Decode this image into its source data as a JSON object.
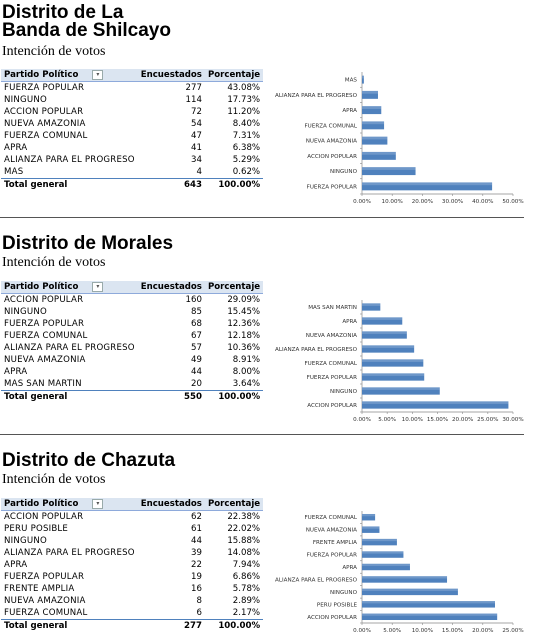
{
  "sections": [
    {
      "title_line1": "Distrito de La",
      "title_line2": "Banda de Shilcayo",
      "subtitle": "Intención de votos",
      "header": {
        "party": "Partido Político",
        "respondents": "Encuestados",
        "percent": "Porcentaje"
      },
      "rows": [
        {
          "party": "FUERZA POPULAR",
          "respondents": "277",
          "percent": "43.08%"
        },
        {
          "party": "NINGUNO",
          "respondents": "114",
          "percent": "17.73%"
        },
        {
          "party": "ACCION POPULAR",
          "respondents": "72",
          "percent": "11.20%"
        },
        {
          "party": "NUEVA AMAZONIA",
          "respondents": "54",
          "percent": "8.40%"
        },
        {
          "party": "FUERZA COMUNAL",
          "respondents": "47",
          "percent": "7.31%"
        },
        {
          "party": "APRA",
          "respondents": "41",
          "percent": "6.38%"
        },
        {
          "party": "ALIANZA PARA EL PROGRESO",
          "respondents": "34",
          "percent": "5.29%"
        },
        {
          "party": "MAS",
          "respondents": "4",
          "percent": "0.62%"
        }
      ],
      "total": {
        "label": "Total general",
        "respondents": "643",
        "percent": "100.00%"
      }
    },
    {
      "title_line1": "Distrito de Morales",
      "subtitle": "Intención de votos",
      "header": {
        "party": "Partido Político",
        "respondents": "Encuestados",
        "percent": "Porcentaje"
      },
      "rows": [
        {
          "party": "ACCION POPULAR",
          "respondents": "160",
          "percent": "29.09%"
        },
        {
          "party": "NINGUNO",
          "respondents": "85",
          "percent": "15.45%"
        },
        {
          "party": "FUERZA POPULAR",
          "respondents": "68",
          "percent": "12.36%"
        },
        {
          "party": "FUERZA COMUNAL",
          "respondents": "67",
          "percent": "12.18%"
        },
        {
          "party": "ALIANZA PARA EL PROGRESO",
          "respondents": "57",
          "percent": "10.36%"
        },
        {
          "party": "NUEVA AMAZONIA",
          "respondents": "49",
          "percent": "8.91%"
        },
        {
          "party": "APRA",
          "respondents": "44",
          "percent": "8.00%"
        },
        {
          "party": "MAS SAN MARTIN",
          "respondents": "20",
          "percent": "3.64%"
        }
      ],
      "total": {
        "label": "Total general",
        "respondents": "550",
        "percent": "100.00%"
      }
    },
    {
      "title_line1": "Distrito de Chazuta",
      "subtitle": "Intención de votos",
      "header": {
        "party": "Partido Político",
        "respondents": "Encuestados",
        "percent": "Porcentaje"
      },
      "rows": [
        {
          "party": "ACCION POPULAR",
          "respondents": "62",
          "percent": "22.38%"
        },
        {
          "party": "PERU POSIBLE",
          "respondents": "61",
          "percent": "22.02%"
        },
        {
          "party": "NINGUNO",
          "respondents": "44",
          "percent": "15.88%"
        },
        {
          "party": "ALIANZA PARA EL PROGRESO",
          "respondents": "39",
          "percent": "14.08%"
        },
        {
          "party": "APRA",
          "respondents": "22",
          "percent": "7.94%"
        },
        {
          "party": "FUERZA POPULAR",
          "respondents": "19",
          "percent": "6.86%"
        },
        {
          "party": "FRENTE AMPLIA",
          "respondents": "16",
          "percent": "5.78%"
        },
        {
          "party": "NUEVA AMAZONIA",
          "respondents": "8",
          "percent": "2.89%"
        },
        {
          "party": "FUERZA COMUNAL",
          "respondents": "6",
          "percent": "2.17%"
        }
      ],
      "total": {
        "label": "Total general",
        "respondents": "277",
        "percent": "100.00%"
      }
    }
  ],
  "chart_data": [
    {
      "type": "bar",
      "orientation": "horizontal",
      "categories": [
        "FUERZA POPULAR",
        "NINGUNO",
        "ACCION POPULAR",
        "NUEVA AMAZONIA",
        "FUERZA COMUNAL",
        "APRA",
        "ALIANZA PARA EL PROGRESO",
        "MAS"
      ],
      "values": [
        43.08,
        17.73,
        11.2,
        8.4,
        7.31,
        6.38,
        5.29,
        0.62
      ],
      "xlim": [
        0,
        50
      ],
      "ticks": [
        "0.00%",
        "10.00%",
        "20.00%",
        "30.00%",
        "40.00%",
        "50.00%"
      ],
      "bar_color": "#4f81bd"
    },
    {
      "type": "bar",
      "orientation": "horizontal",
      "categories": [
        "ACCION POPULAR",
        "NINGUNO",
        "FUERZA POPULAR",
        "FUERZA COMUNAL",
        "ALIANZA PARA EL PROGRESO",
        "NUEVA AMAZONIA",
        "APRA",
        "MAS SAN MARTIN"
      ],
      "values": [
        29.09,
        15.45,
        12.36,
        12.18,
        10.36,
        8.91,
        8.0,
        3.64
      ],
      "xlim": [
        0,
        30
      ],
      "ticks": [
        "0.00%",
        "5.00%",
        "10.00%",
        "15.00%",
        "20.00%",
        "25.00%",
        "30.00%"
      ],
      "bar_color": "#4f81bd"
    },
    {
      "type": "bar",
      "orientation": "horizontal",
      "categories": [
        "ACCION POPULAR",
        "PERU POSIBLE",
        "NINGUNO",
        "ALIANZA PARA EL PROGRESO",
        "APRA",
        "FUERZA POPULAR",
        "FRENTE AMPLIA",
        "NUEVA AMAZONIA",
        "FUERZA COMUNAL"
      ],
      "values": [
        22.38,
        22.02,
        15.88,
        14.08,
        7.94,
        6.86,
        5.78,
        2.89,
        2.17
      ],
      "xlim": [
        0,
        25
      ],
      "ticks": [
        "0.00%",
        "5.00%",
        "10.00%",
        "15.00%",
        "20.00%",
        "25.00%"
      ],
      "bar_color": "#4f81bd"
    }
  ]
}
